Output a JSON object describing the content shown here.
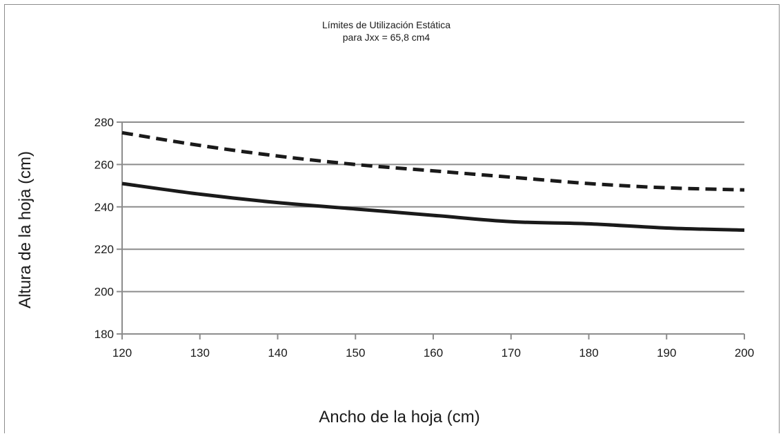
{
  "chart_data": {
    "type": "line",
    "title": "Límites de Utilización Estática",
    "subtitle": "para Jxx = 65,8 cm4",
    "xlabel": "Ancho de la hoja (cm)",
    "ylabel": "Altura de la hoja (cm)",
    "xlim": [
      120,
      200
    ],
    "ylim": [
      180,
      280
    ],
    "x_ticks": [
      120,
      130,
      140,
      150,
      160,
      170,
      180,
      190,
      200
    ],
    "y_ticks": [
      180,
      200,
      220,
      240,
      260,
      280
    ],
    "grid": "horizontal",
    "legend": "none",
    "x": [
      120,
      130,
      140,
      150,
      160,
      170,
      180,
      190,
      200
    ],
    "series": [
      {
        "style": "dashed",
        "color": "#1a1a1a",
        "values": [
          275,
          269,
          264,
          260,
          257,
          254,
          251,
          249,
          248
        ]
      },
      {
        "style": "solid",
        "color": "#1a1a1a",
        "values": [
          251,
          246,
          242,
          239,
          236,
          233,
          232,
          230,
          229
        ]
      }
    ]
  }
}
